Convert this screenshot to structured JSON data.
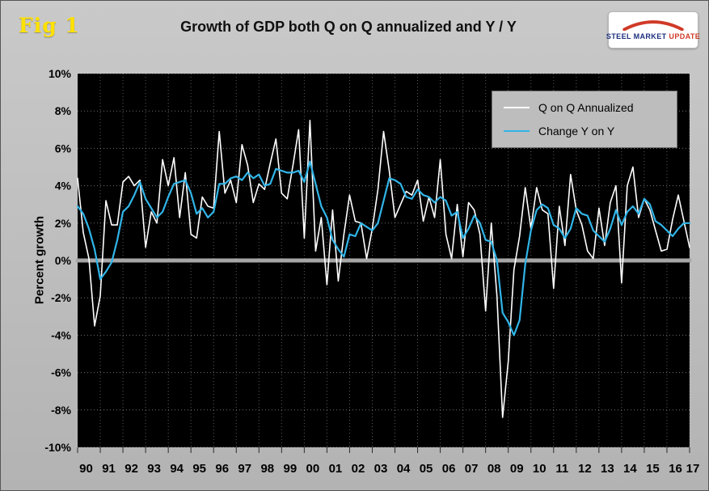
{
  "fig_label": "Fig 1",
  "logo": {
    "word1": "STEEL",
    "word2": "MARKET",
    "word3": "UPDATE"
  },
  "colors": {
    "fig_label": "#ffe100",
    "page_background": "#bfbfbf",
    "plot_background": "#000000",
    "qoq_line": "#ffffff",
    "yoy_line": "#31b5e8",
    "zero_line": "#a6a6a6",
    "gridline": "#cccccc",
    "logo_swoosh": "#d03a28",
    "logo_text": "#1b2f7e"
  },
  "chart_data": {
    "type": "line",
    "title": "Growth of GDP both Q on Q annualized and Y / Y",
    "xlabel": "",
    "ylabel": "Percent growth",
    "ylim": [
      -10,
      10
    ],
    "ytick_step": 2,
    "ytick_suffix": "%",
    "grid": true,
    "legend_position": "top-right",
    "plot_bg": "#000000",
    "zero_line_color": "#a6a6a6",
    "x_start": "1990 Q1",
    "x_end": "2017 Q1",
    "x_frequency": "quarterly",
    "categories": [
      "90",
      "91",
      "92",
      "93",
      "94",
      "95",
      "96",
      "97",
      "98",
      "99",
      "00",
      "01",
      "02",
      "03",
      "04",
      "05",
      "06",
      "07",
      "08",
      "09",
      "10",
      "11",
      "12",
      "13",
      "14",
      "15",
      "16",
      "17"
    ],
    "series": [
      {
        "name": "Q on Q Annualized",
        "color": "#ffffff",
        "width": 1.6,
        "values": [
          4.4,
          1.5,
          0.1,
          -3.5,
          -1.9,
          3.2,
          1.9,
          1.9,
          4.2,
          4.5,
          4.0,
          4.3,
          0.7,
          2.6,
          2.0,
          5.4,
          4.0,
          5.5,
          2.3,
          4.7,
          1.4,
          1.2,
          3.4,
          2.9,
          2.8,
          6.9,
          3.6,
          4.3,
          3.1,
          6.2,
          5.1,
          3.1,
          4.1,
          3.8,
          5.2,
          6.5,
          3.6,
          3.3,
          5.1,
          7.0,
          1.2,
          7.5,
          0.5,
          2.3,
          -1.3,
          2.7,
          -1.1,
          1.4,
          3.5,
          2.1,
          2.0,
          0.1,
          1.7,
          3.8,
          6.9,
          4.8,
          2.3,
          3.0,
          3.7,
          3.5,
          4.3,
          2.1,
          3.4,
          2.3,
          5.4,
          1.4,
          0.1,
          3.0,
          0.2,
          3.1,
          2.7,
          1.4,
          -2.7,
          2.0,
          -1.9,
          -8.4,
          -5.4,
          -0.5,
          1.3,
          3.9,
          1.7,
          3.9,
          2.7,
          2.5,
          -1.5,
          2.9,
          0.8,
          4.6,
          2.7,
          1.9,
          0.5,
          0.1,
          2.8,
          0.8,
          3.1,
          4.0,
          -1.2,
          4.0,
          5.0,
          2.3,
          3.3,
          2.7,
          1.6,
          0.5,
          0.6,
          2.2,
          3.5,
          2.1,
          0.7
        ]
      },
      {
        "name": "Change Y on Y",
        "color": "#31b5e8",
        "width": 2.2,
        "values": [
          2.9,
          2.5,
          1.7,
          0.6,
          -1.0,
          -0.6,
          -0.1,
          1.1,
          2.6,
          2.9,
          3.5,
          4.2,
          3.3,
          2.8,
          2.3,
          2.6,
          3.4,
          4.1,
          4.2,
          4.3,
          3.6,
          2.5,
          2.8,
          2.3,
          2.6,
          4.1,
          4.1,
          4.4,
          4.5,
          4.3,
          4.7,
          4.4,
          4.6,
          4.0,
          4.1,
          4.9,
          4.8,
          4.7,
          4.7,
          4.8,
          4.2,
          5.3,
          4.1,
          2.9,
          2.3,
          1.1,
          0.6,
          0.2,
          1.4,
          1.3,
          2.0,
          1.8,
          1.6,
          2.0,
          3.2,
          4.4,
          4.3,
          4.1,
          3.4,
          3.3,
          3.8,
          3.5,
          3.4,
          3.1,
          3.4,
          3.2,
          2.4,
          2.6,
          1.2,
          1.7,
          2.4,
          2.0,
          1.1,
          1.0,
          0.0,
          -2.8,
          -3.3,
          -4.0,
          -3.2,
          -0.2,
          1.6,
          2.7,
          3.0,
          2.8,
          1.9,
          1.7,
          1.2,
          1.7,
          2.8,
          2.5,
          2.4,
          1.6,
          1.3,
          1.0,
          1.7,
          2.7,
          1.9,
          2.6,
          2.9,
          2.5,
          3.3,
          3.0,
          2.1,
          1.9,
          1.6,
          1.3,
          1.7,
          2.0,
          2.0
        ]
      }
    ]
  }
}
